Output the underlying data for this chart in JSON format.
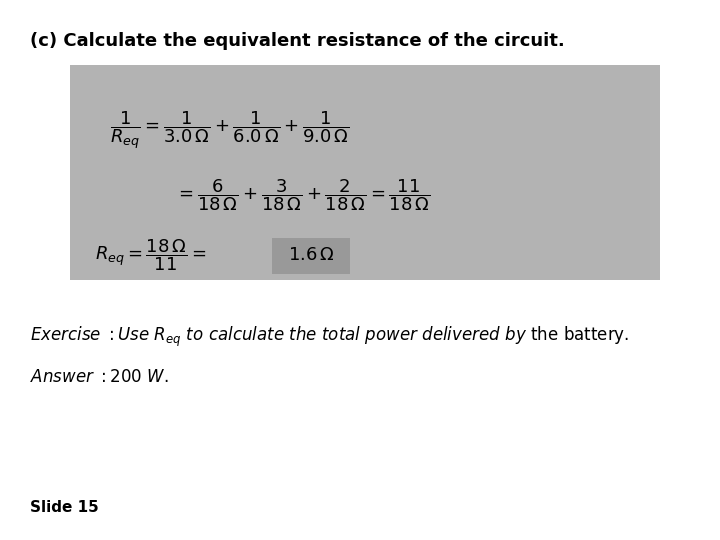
{
  "title": "(c) Calculate the equivalent resistance of the circuit.",
  "bg_color": "#ffffff",
  "box_color": "#b3b3b3",
  "box_highlight_color": "#999999",
  "title_fontsize": 13,
  "eq_fontsize": 13,
  "exercise_fontsize": 12,
  "answer_fontsize": 12,
  "slide_fontsize": 11
}
